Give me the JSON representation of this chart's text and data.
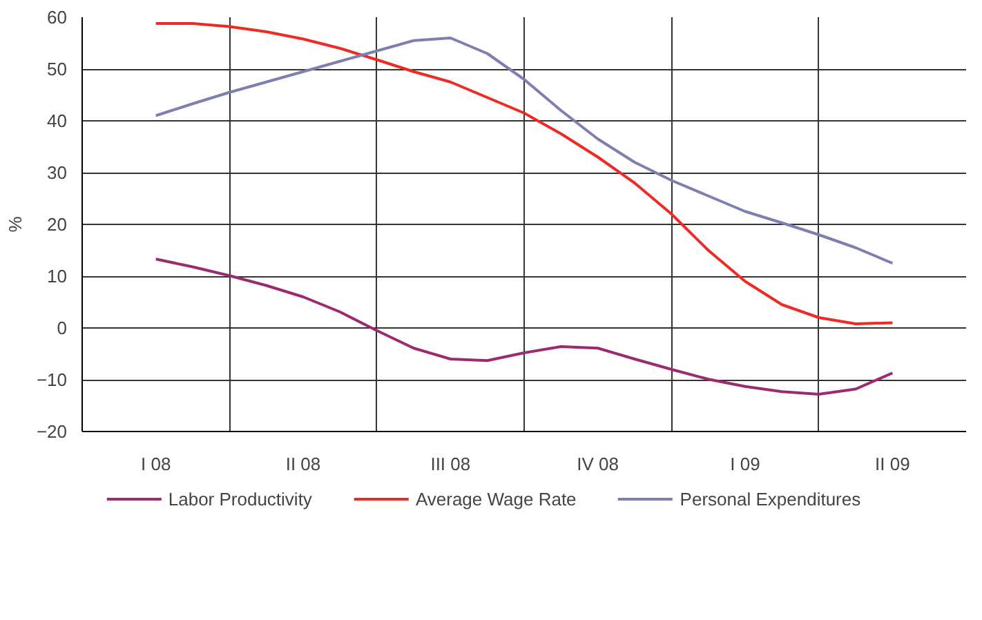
{
  "chart_data": {
    "type": "line",
    "ylabel": "%",
    "categories": [
      "I 08",
      null,
      null,
      null,
      "II 08",
      null,
      null,
      null,
      "III 08",
      null,
      null,
      null,
      "IV 08",
      null,
      null,
      null,
      "I 09",
      null,
      null,
      null,
      "II 09"
    ],
    "series": [
      {
        "name": "Labor Productivity",
        "color": "#9b2a6e",
        "values": [
          13.3,
          11.8,
          10.1,
          8.2,
          6.0,
          3.1,
          -0.5,
          -3.9,
          -6.0,
          -6.3,
          -4.8,
          -3.6,
          -3.9,
          -6.0,
          -8.0,
          -9.9,
          -11.3,
          -12.3,
          -12.8,
          -11.8,
          -8.7
        ]
      },
      {
        "name": "Average Wage Rate",
        "color": "#ee2a24",
        "values": [
          58.8,
          58.8,
          58.2,
          57.2,
          55.8,
          54.0,
          51.8,
          49.5,
          47.5,
          44.5,
          41.5,
          37.5,
          33,
          28,
          22,
          15,
          9,
          4.5,
          2,
          0.8,
          1
        ]
      },
      {
        "name": "Personal Expenditures",
        "color": "#7e7fb0",
        "values": [
          41,
          43.3,
          45.5,
          47.5,
          49.5,
          51.5,
          53.5,
          55.5,
          56,
          53,
          48,
          42,
          36.5,
          32,
          28.5,
          25.5,
          22.5,
          20.3,
          18,
          15.5,
          12.5
        ]
      }
    ],
    "ylim": [
      -20,
      60
    ],
    "yticks": [
      -20,
      -10,
      0,
      10,
      20,
      30,
      40,
      50,
      60
    ],
    "grid": true,
    "legend": "bottom",
    "line_style": "solid"
  }
}
